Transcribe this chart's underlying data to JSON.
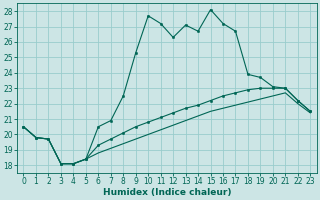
{
  "xlabel": "Humidex (Indice chaleur)",
  "xlim": [
    -0.5,
    23.5
  ],
  "ylim": [
    17.5,
    28.5
  ],
  "xticks": [
    0,
    1,
    2,
    3,
    4,
    5,
    6,
    7,
    8,
    9,
    10,
    11,
    12,
    13,
    14,
    15,
    16,
    17,
    18,
    19,
    20,
    21,
    22,
    23
  ],
  "yticks": [
    18,
    19,
    20,
    21,
    22,
    23,
    24,
    25,
    26,
    27,
    28
  ],
  "bg_color": "#cce5e5",
  "grid_color": "#99cccc",
  "line_color": "#006655",
  "line1_x": [
    0,
    1,
    2,
    3,
    4,
    5,
    6,
    7,
    8,
    9,
    10,
    11,
    12,
    13,
    14,
    15,
    16,
    17,
    18,
    19,
    20,
    21,
    22,
    23
  ],
  "line1_y": [
    20.5,
    19.8,
    19.7,
    18.1,
    18.1,
    18.4,
    20.5,
    20.9,
    22.5,
    25.3,
    27.7,
    27.2,
    26.3,
    27.1,
    26.7,
    28.1,
    27.2,
    26.7,
    23.9,
    23.7,
    23.1,
    23.0,
    22.2,
    21.5
  ],
  "line2_x": [
    0,
    1,
    2,
    3,
    4,
    5,
    6,
    7,
    8,
    9,
    10,
    11,
    12,
    13,
    14,
    15,
    16,
    17,
    18,
    19,
    20,
    21,
    22,
    23
  ],
  "line2_y": [
    20.5,
    19.8,
    19.7,
    18.1,
    18.1,
    18.4,
    19.3,
    19.7,
    20.1,
    20.5,
    20.8,
    21.1,
    21.4,
    21.7,
    21.9,
    22.2,
    22.5,
    22.7,
    22.9,
    23.0,
    23.0,
    23.0,
    22.2,
    21.5
  ],
  "line3_x": [
    0,
    1,
    2,
    3,
    4,
    5,
    6,
    7,
    8,
    9,
    10,
    11,
    12,
    13,
    14,
    15,
    16,
    17,
    18,
    19,
    20,
    21,
    22,
    23
  ],
  "line3_y": [
    20.5,
    19.8,
    19.7,
    18.1,
    18.1,
    18.4,
    18.8,
    19.1,
    19.4,
    19.7,
    20.0,
    20.3,
    20.6,
    20.9,
    21.2,
    21.5,
    21.7,
    21.9,
    22.1,
    22.3,
    22.5,
    22.7,
    22.0,
    21.4
  ],
  "marker_size": 1.8,
  "line_width": 0.8,
  "tick_fontsize": 5.5,
  "xlabel_fontsize": 6.5
}
